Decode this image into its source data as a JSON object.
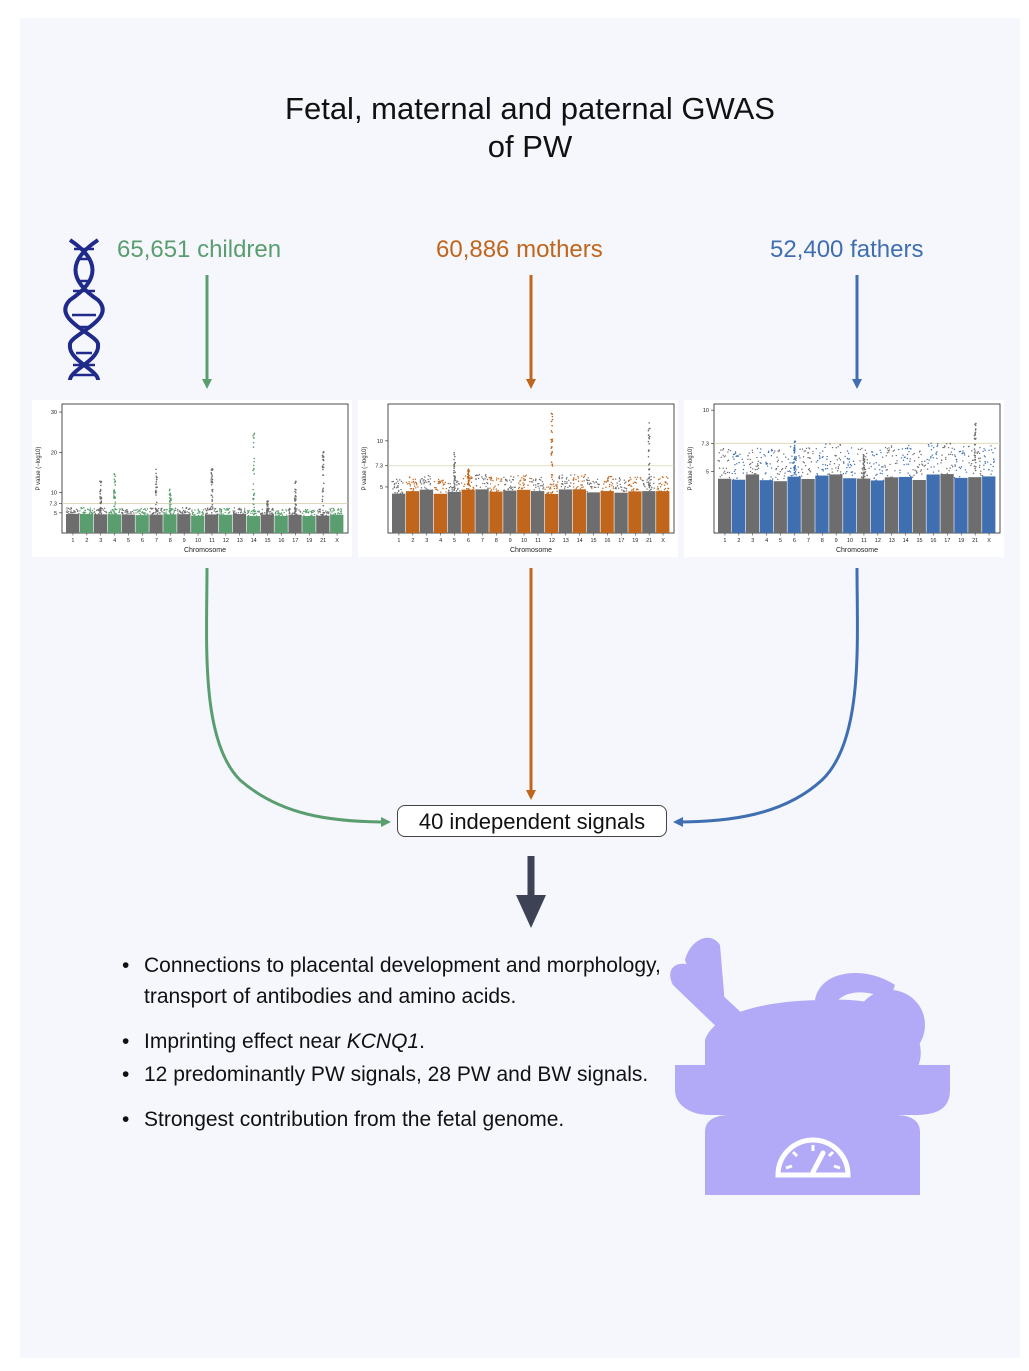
{
  "title": "Fetal, maternal and paternal GWAS\nof PW",
  "cohorts": [
    {
      "label": "65,651 children",
      "color": "#5a9e70"
    },
    {
      "label": "60,886 mothers",
      "color": "#c0651c"
    },
    {
      "label": "52,400 fathers",
      "color": "#3f6fb0"
    }
  ],
  "plots": [
    {
      "name": "children",
      "accent": "#5a9e70",
      "ylabel": "P value (−log10)",
      "xlabel": "Chromosome",
      "yticks": [
        "5",
        "7.3",
        "10",
        "20",
        "30"
      ],
      "ymax": 32,
      "chromosomes": [
        "1",
        "2",
        "3",
        "4",
        "5",
        "6",
        "7",
        "8",
        "9",
        "10",
        "11",
        "12",
        "13",
        "14",
        "15",
        "16",
        "17",
        "19",
        "21",
        "X"
      ]
    },
    {
      "name": "mothers",
      "accent": "#c0651c",
      "ylabel": "P value (−log10)",
      "xlabel": "Chromosome",
      "yticks": [
        "5",
        "7.3",
        "10"
      ],
      "ymax": 14,
      "chromosomes": [
        "1",
        "2",
        "3",
        "4",
        "5",
        "6",
        "7",
        "8",
        "9",
        "10",
        "11",
        "12",
        "13",
        "14",
        "15",
        "16",
        "17",
        "19",
        "21",
        "X"
      ]
    },
    {
      "name": "fathers",
      "accent": "#3f6fb0",
      "ylabel": "P value (−log10)",
      "xlabel": "Chromosome",
      "yticks": [
        "5",
        "7.3",
        "10"
      ],
      "ymax": 10.5,
      "chromosomes": [
        "1",
        "2",
        "3",
        "4",
        "5",
        "6",
        "7",
        "8",
        "9",
        "10",
        "11",
        "12",
        "13",
        "14",
        "15",
        "16",
        "17",
        "19",
        "21",
        "X"
      ]
    }
  ],
  "signals": "40 independent signals",
  "findings": [
    {
      "bullet": "•",
      "text": "Connections to placental development and morphology, transport of antibodies and amino acids."
    },
    {
      "bullet": "•",
      "text": "Imprinting effect near ",
      "italic": "KCNQ1",
      "after": "."
    },
    {
      "bullet": "•",
      "text": "12 predominantly PW signals, 28 PW and BW signals."
    },
    {
      "bullet": "•",
      "text": "Strongest contribution from the fetal genome."
    }
  ],
  "colors": {
    "dna": "#1f2a8a",
    "baby": "#b3aaf7",
    "arrow_down": "#3d4354",
    "grey": "#6d6d6d"
  },
  "icons": [
    "dna-icon",
    "baby-on-scale-icon"
  ]
}
